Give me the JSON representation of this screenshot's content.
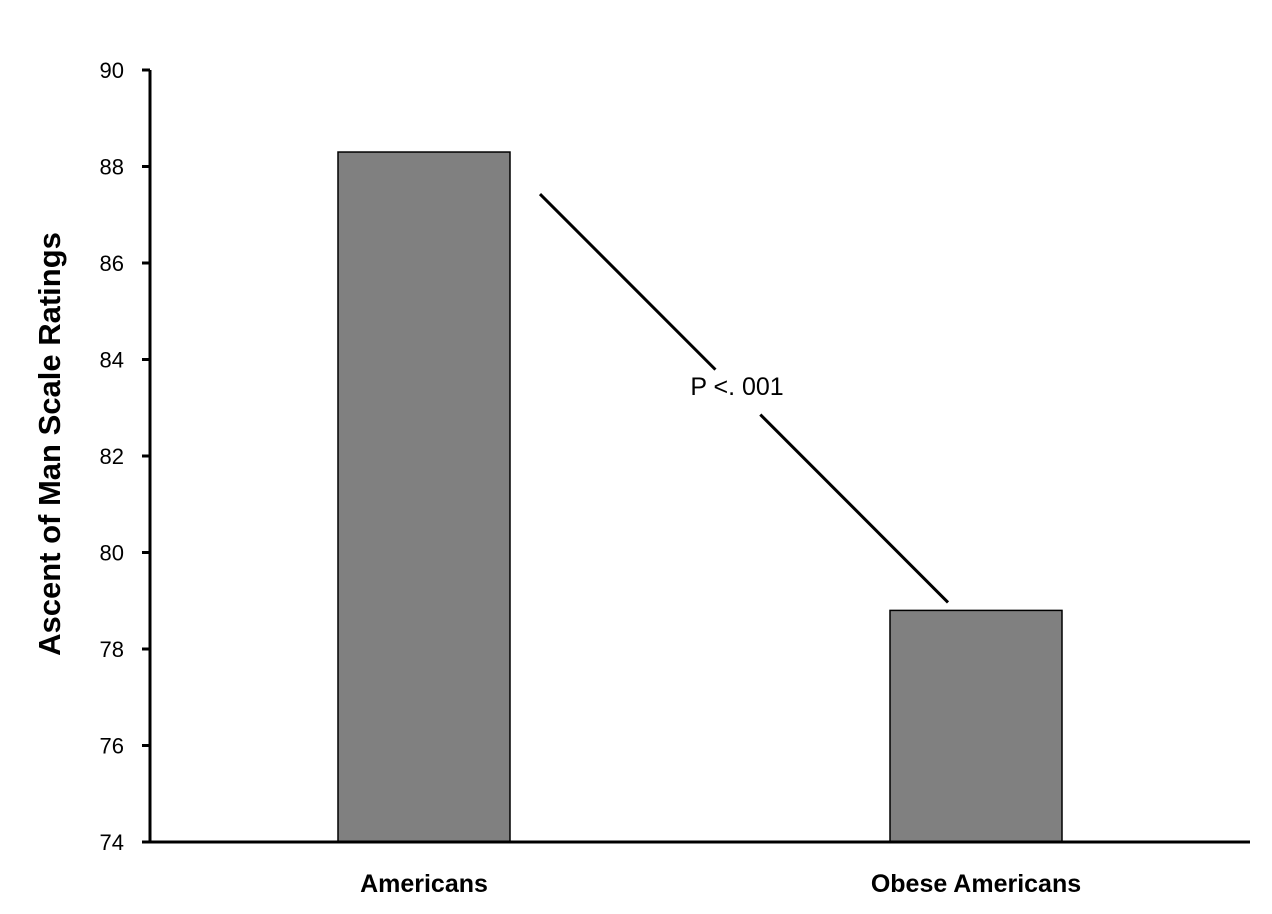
{
  "chart_data": {
    "type": "bar",
    "categories": [
      "Americans",
      "Obese Americans"
    ],
    "values": [
      88.3,
      78.8
    ],
    "title": "",
    "xlabel": "",
    "ylabel": "Ascent of Man Scale Ratings",
    "ylim": [
      74,
      90
    ],
    "yticks": [
      74,
      76,
      78,
      80,
      82,
      84,
      86,
      88,
      90
    ],
    "grid": false,
    "legend": "none",
    "bar_color": "#808080",
    "annotation": {
      "text": "P <. 001",
      "connects": [
        "Americans",
        "Obese Americans"
      ]
    }
  }
}
